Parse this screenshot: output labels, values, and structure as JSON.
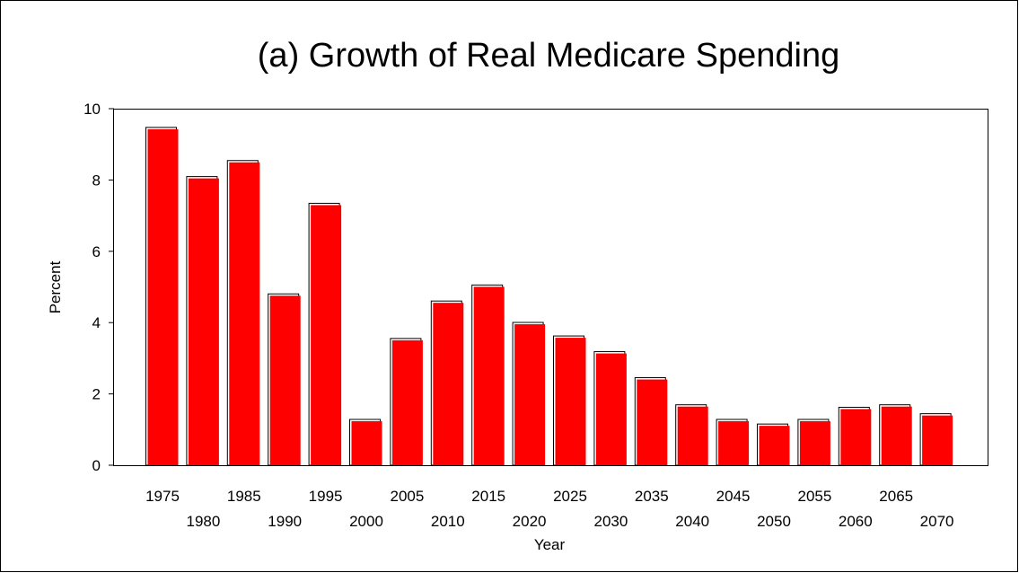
{
  "chart_data": {
    "type": "bar",
    "title": "(a) Growth of Real Medicare Spending",
    "xlabel": "Year",
    "ylabel": "Percent",
    "ylim": [
      0,
      10
    ],
    "yticks": [
      "0",
      "2",
      "4",
      "6",
      "8",
      "10"
    ],
    "grid": false,
    "legend": "none",
    "bar_color": "#ff0000",
    "categories": [
      "1975",
      "1980",
      "1985",
      "1990",
      "1995",
      "2000",
      "2005",
      "2010",
      "2015",
      "2020",
      "2025",
      "2030",
      "2035",
      "2040",
      "2045",
      "2050",
      "2055",
      "2060",
      "2065",
      "2070"
    ],
    "values": [
      9.45,
      8.07,
      8.52,
      4.78,
      7.32,
      1.26,
      3.53,
      4.58,
      5.03,
      3.98,
      3.6,
      3.16,
      2.43,
      1.67,
      1.26,
      1.13,
      1.26,
      1.6,
      1.67,
      1.42
    ]
  }
}
